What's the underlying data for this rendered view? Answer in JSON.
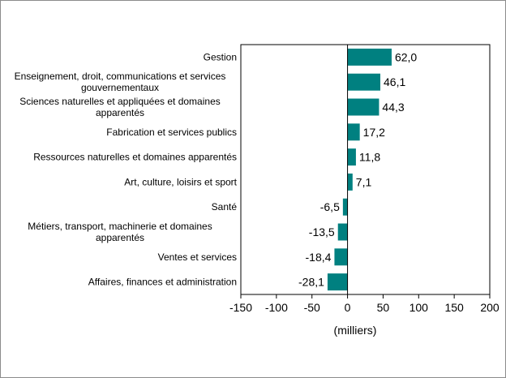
{
  "chart_data": {
    "type": "bar",
    "orientation": "horizontal",
    "categories": [
      [
        "Gestion"
      ],
      [
        "Enseignement, droit, communications et services",
        "gouvernementaux"
      ],
      [
        "Sciences naturelles et appliquées et domaines",
        "apparentés"
      ],
      [
        "Fabrication et services publics"
      ],
      [
        "Ressources naturelles et domaines apparentés"
      ],
      [
        "Art, culture, loisirs et sport"
      ],
      [
        "Santé"
      ],
      [
        "Métiers, transport, machinerie et domaines",
        "apparentés"
      ],
      [
        "Ventes et services"
      ],
      [
        "Affaires, finances et administration"
      ]
    ],
    "values": [
      62.0,
      46.1,
      44.3,
      17.2,
      11.8,
      7.1,
      -6.5,
      -13.5,
      -18.4,
      -28.1
    ],
    "value_labels": [
      "62,0",
      "46,1",
      "44,3",
      "17,2",
      "11,8",
      "7,1",
      "-6,5",
      "-13,5",
      "-18,4",
      "-28,1"
    ],
    "xlim": [
      -150,
      200
    ],
    "xticks": [
      -150,
      -100,
      -50,
      0,
      50,
      100,
      150,
      200
    ],
    "xlabel": "(milliers)",
    "bar_color": "#008080",
    "grid": false,
    "legend": "none"
  }
}
